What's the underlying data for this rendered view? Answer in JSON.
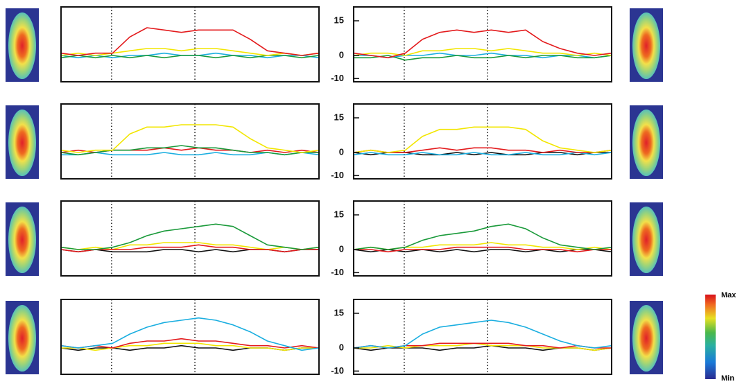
{
  "chart_data": [
    {
      "type": "line",
      "ylim": [
        -11.4,
        21
      ],
      "series": [
        {
          "color": "#1aaee0",
          "values": [
            0,
            -1,
            0,
            -1,
            0,
            0,
            1,
            0,
            0,
            1,
            0,
            0,
            -1,
            0,
            0,
            -1
          ]
        },
        {
          "color": "#1a9a3a",
          "values": [
            -1,
            0,
            -1,
            0,
            -1,
            0,
            -1,
            0,
            0,
            -1,
            0,
            -1,
            0,
            0,
            -1,
            0
          ]
        },
        {
          "color": "#f2e600",
          "values": [
            0,
            1,
            0,
            1,
            2,
            3,
            3,
            2,
            3,
            3,
            2,
            1,
            0,
            1,
            0,
            1
          ]
        },
        {
          "color": "#e31a1c",
          "values": [
            1,
            0,
            1,
            1,
            8,
            12,
            11,
            10,
            11,
            11,
            11,
            7,
            2,
            1,
            0,
            1
          ]
        }
      ]
    },
    {
      "type": "line",
      "ylim": [
        -11.4,
        21
      ],
      "yticks": [
        -10,
        0,
        15
      ],
      "series": [
        {
          "color": "#1aaee0",
          "values": [
            0,
            0,
            -1,
            0,
            0,
            1,
            0,
            0,
            1,
            0,
            0,
            -1,
            0,
            0,
            -1,
            0
          ]
        },
        {
          "color": "#1a9a3a",
          "values": [
            -1,
            -1,
            0,
            -2,
            -1,
            -1,
            0,
            -1,
            -1,
            0,
            -1,
            0,
            0,
            -1,
            -1,
            0
          ]
        },
        {
          "color": "#f2e600",
          "values": [
            0,
            1,
            1,
            0,
            2,
            2,
            3,
            3,
            2,
            3,
            2,
            1,
            1,
            0,
            1,
            0
          ]
        },
        {
          "color": "#e31a1c",
          "values": [
            1,
            0,
            -1,
            1,
            7,
            10,
            11,
            10,
            11,
            10,
            11,
            6,
            3,
            1,
            0,
            1
          ]
        }
      ]
    },
    {
      "type": "line",
      "ylim": [
        -11.4,
        21
      ],
      "series": [
        {
          "color": "#1aaee0",
          "values": [
            -1,
            -1,
            0,
            -1,
            -1,
            -1,
            0,
            -1,
            -1,
            0,
            -1,
            -1,
            0,
            -1,
            0,
            -1
          ]
        },
        {
          "color": "#e31a1c",
          "values": [
            0,
            1,
            0,
            1,
            1,
            1,
            2,
            1,
            2,
            1,
            1,
            0,
            1,
            0,
            1,
            0
          ]
        },
        {
          "color": "#1a9a3a",
          "values": [
            0,
            -1,
            0,
            1,
            1,
            2,
            2,
            3,
            2,
            2,
            1,
            0,
            0,
            -1,
            0,
            0
          ]
        },
        {
          "color": "#f2e600",
          "values": [
            1,
            0,
            1,
            1,
            8,
            11,
            11,
            12,
            12,
            12,
            11,
            6,
            2,
            1,
            0,
            1
          ]
        }
      ]
    },
    {
      "type": "line",
      "ylim": [
        -11.4,
        21
      ],
      "yticks": [
        -10,
        0,
        15
      ],
      "series": [
        {
          "color": "#111111",
          "values": [
            0,
            -1,
            0,
            0,
            -1,
            -1,
            0,
            -1,
            0,
            -1,
            -1,
            0,
            0,
            -1,
            0,
            0
          ]
        },
        {
          "color": "#1aaee0",
          "values": [
            -1,
            0,
            -1,
            -1,
            0,
            -1,
            -1,
            0,
            -1,
            -1,
            0,
            -1,
            -1,
            0,
            -1,
            0
          ]
        },
        {
          "color": "#e31a1c",
          "values": [
            0,
            1,
            0,
            0,
            1,
            2,
            1,
            2,
            2,
            1,
            1,
            0,
            1,
            0,
            0,
            1
          ]
        },
        {
          "color": "#f2e600",
          "values": [
            0,
            1,
            0,
            1,
            7,
            10,
            10,
            11,
            11,
            11,
            10,
            5,
            2,
            1,
            0,
            1
          ]
        }
      ]
    },
    {
      "type": "line",
      "ylim": [
        -11.4,
        21
      ],
      "series": [
        {
          "color": "#111111",
          "values": [
            0,
            -1,
            0,
            -1,
            -1,
            -1,
            0,
            0,
            -1,
            0,
            -1,
            0,
            0,
            -1,
            0,
            0
          ]
        },
        {
          "color": "#f2e600",
          "values": [
            1,
            0,
            1,
            0,
            2,
            2,
            3,
            3,
            3,
            2,
            2,
            1,
            0,
            1,
            0,
            1
          ]
        },
        {
          "color": "#e31a1c",
          "values": [
            0,
            -1,
            0,
            0,
            0,
            1,
            1,
            1,
            2,
            1,
            1,
            0,
            0,
            -1,
            0,
            0
          ]
        },
        {
          "color": "#1a9a3a",
          "values": [
            1,
            0,
            0,
            1,
            3,
            6,
            8,
            9,
            10,
            11,
            10,
            6,
            2,
            1,
            0,
            1
          ]
        }
      ]
    },
    {
      "type": "line",
      "ylim": [
        -11.4,
        21
      ],
      "yticks": [
        -10,
        0,
        15
      ],
      "series": [
        {
          "color": "#111111",
          "values": [
            0,
            -1,
            0,
            -1,
            0,
            -1,
            0,
            -1,
            0,
            0,
            -1,
            0,
            -1,
            0,
            0,
            -1
          ]
        },
        {
          "color": "#f2e600",
          "values": [
            0,
            1,
            0,
            1,
            1,
            2,
            2,
            2,
            3,
            2,
            2,
            1,
            1,
            0,
            1,
            0
          ]
        },
        {
          "color": "#e31a1c",
          "values": [
            0,
            0,
            -1,
            0,
            0,
            0,
            1,
            1,
            1,
            1,
            0,
            0,
            0,
            -1,
            0,
            0
          ]
        },
        {
          "color": "#1a9a3a",
          "values": [
            0,
            1,
            0,
            1,
            4,
            6,
            7,
            8,
            10,
            11,
            9,
            5,
            2,
            1,
            0,
            1
          ]
        }
      ]
    },
    {
      "type": "line",
      "ylim": [
        -11.4,
        21
      ],
      "series": [
        {
          "color": "#111111",
          "values": [
            0,
            -1,
            0,
            0,
            -1,
            0,
            0,
            1,
            0,
            0,
            -1,
            0,
            0,
            -1,
            0,
            0
          ]
        },
        {
          "color": "#f2e600",
          "values": [
            0,
            0,
            -1,
            0,
            1,
            1,
            2,
            2,
            2,
            1,
            1,
            0,
            0,
            -1,
            0,
            0
          ]
        },
        {
          "color": "#e31a1c",
          "values": [
            1,
            0,
            1,
            0,
            2,
            3,
            3,
            4,
            3,
            3,
            2,
            1,
            1,
            0,
            1,
            0
          ]
        },
        {
          "color": "#1aaee0",
          "values": [
            1,
            0,
            1,
            2,
            6,
            9,
            11,
            12,
            13,
            12,
            10,
            7,
            3,
            1,
            -1,
            0
          ]
        }
      ]
    },
    {
      "type": "line",
      "ylim": [
        -11.4,
        21
      ],
      "yticks": [
        -10,
        0,
        15
      ],
      "series": [
        {
          "color": "#111111",
          "values": [
            0,
            -1,
            0,
            0,
            0,
            -1,
            0,
            0,
            1,
            0,
            0,
            -1,
            0,
            0,
            -1,
            0
          ]
        },
        {
          "color": "#f2e600",
          "values": [
            0,
            0,
            1,
            0,
            1,
            1,
            1,
            2,
            1,
            1,
            1,
            0,
            0,
            0,
            -1,
            0
          ]
        },
        {
          "color": "#e31a1c",
          "values": [
            0,
            1,
            0,
            1,
            1,
            2,
            2,
            2,
            2,
            2,
            1,
            1,
            0,
            1,
            0,
            0
          ]
        },
        {
          "color": "#1aaee0",
          "values": [
            0,
            1,
            0,
            1,
            6,
            9,
            10,
            11,
            12,
            11,
            9,
            6,
            3,
            1,
            0,
            1
          ]
        }
      ]
    }
  ],
  "colorbar": {
    "max_label": "Max",
    "min_label": "Min"
  }
}
